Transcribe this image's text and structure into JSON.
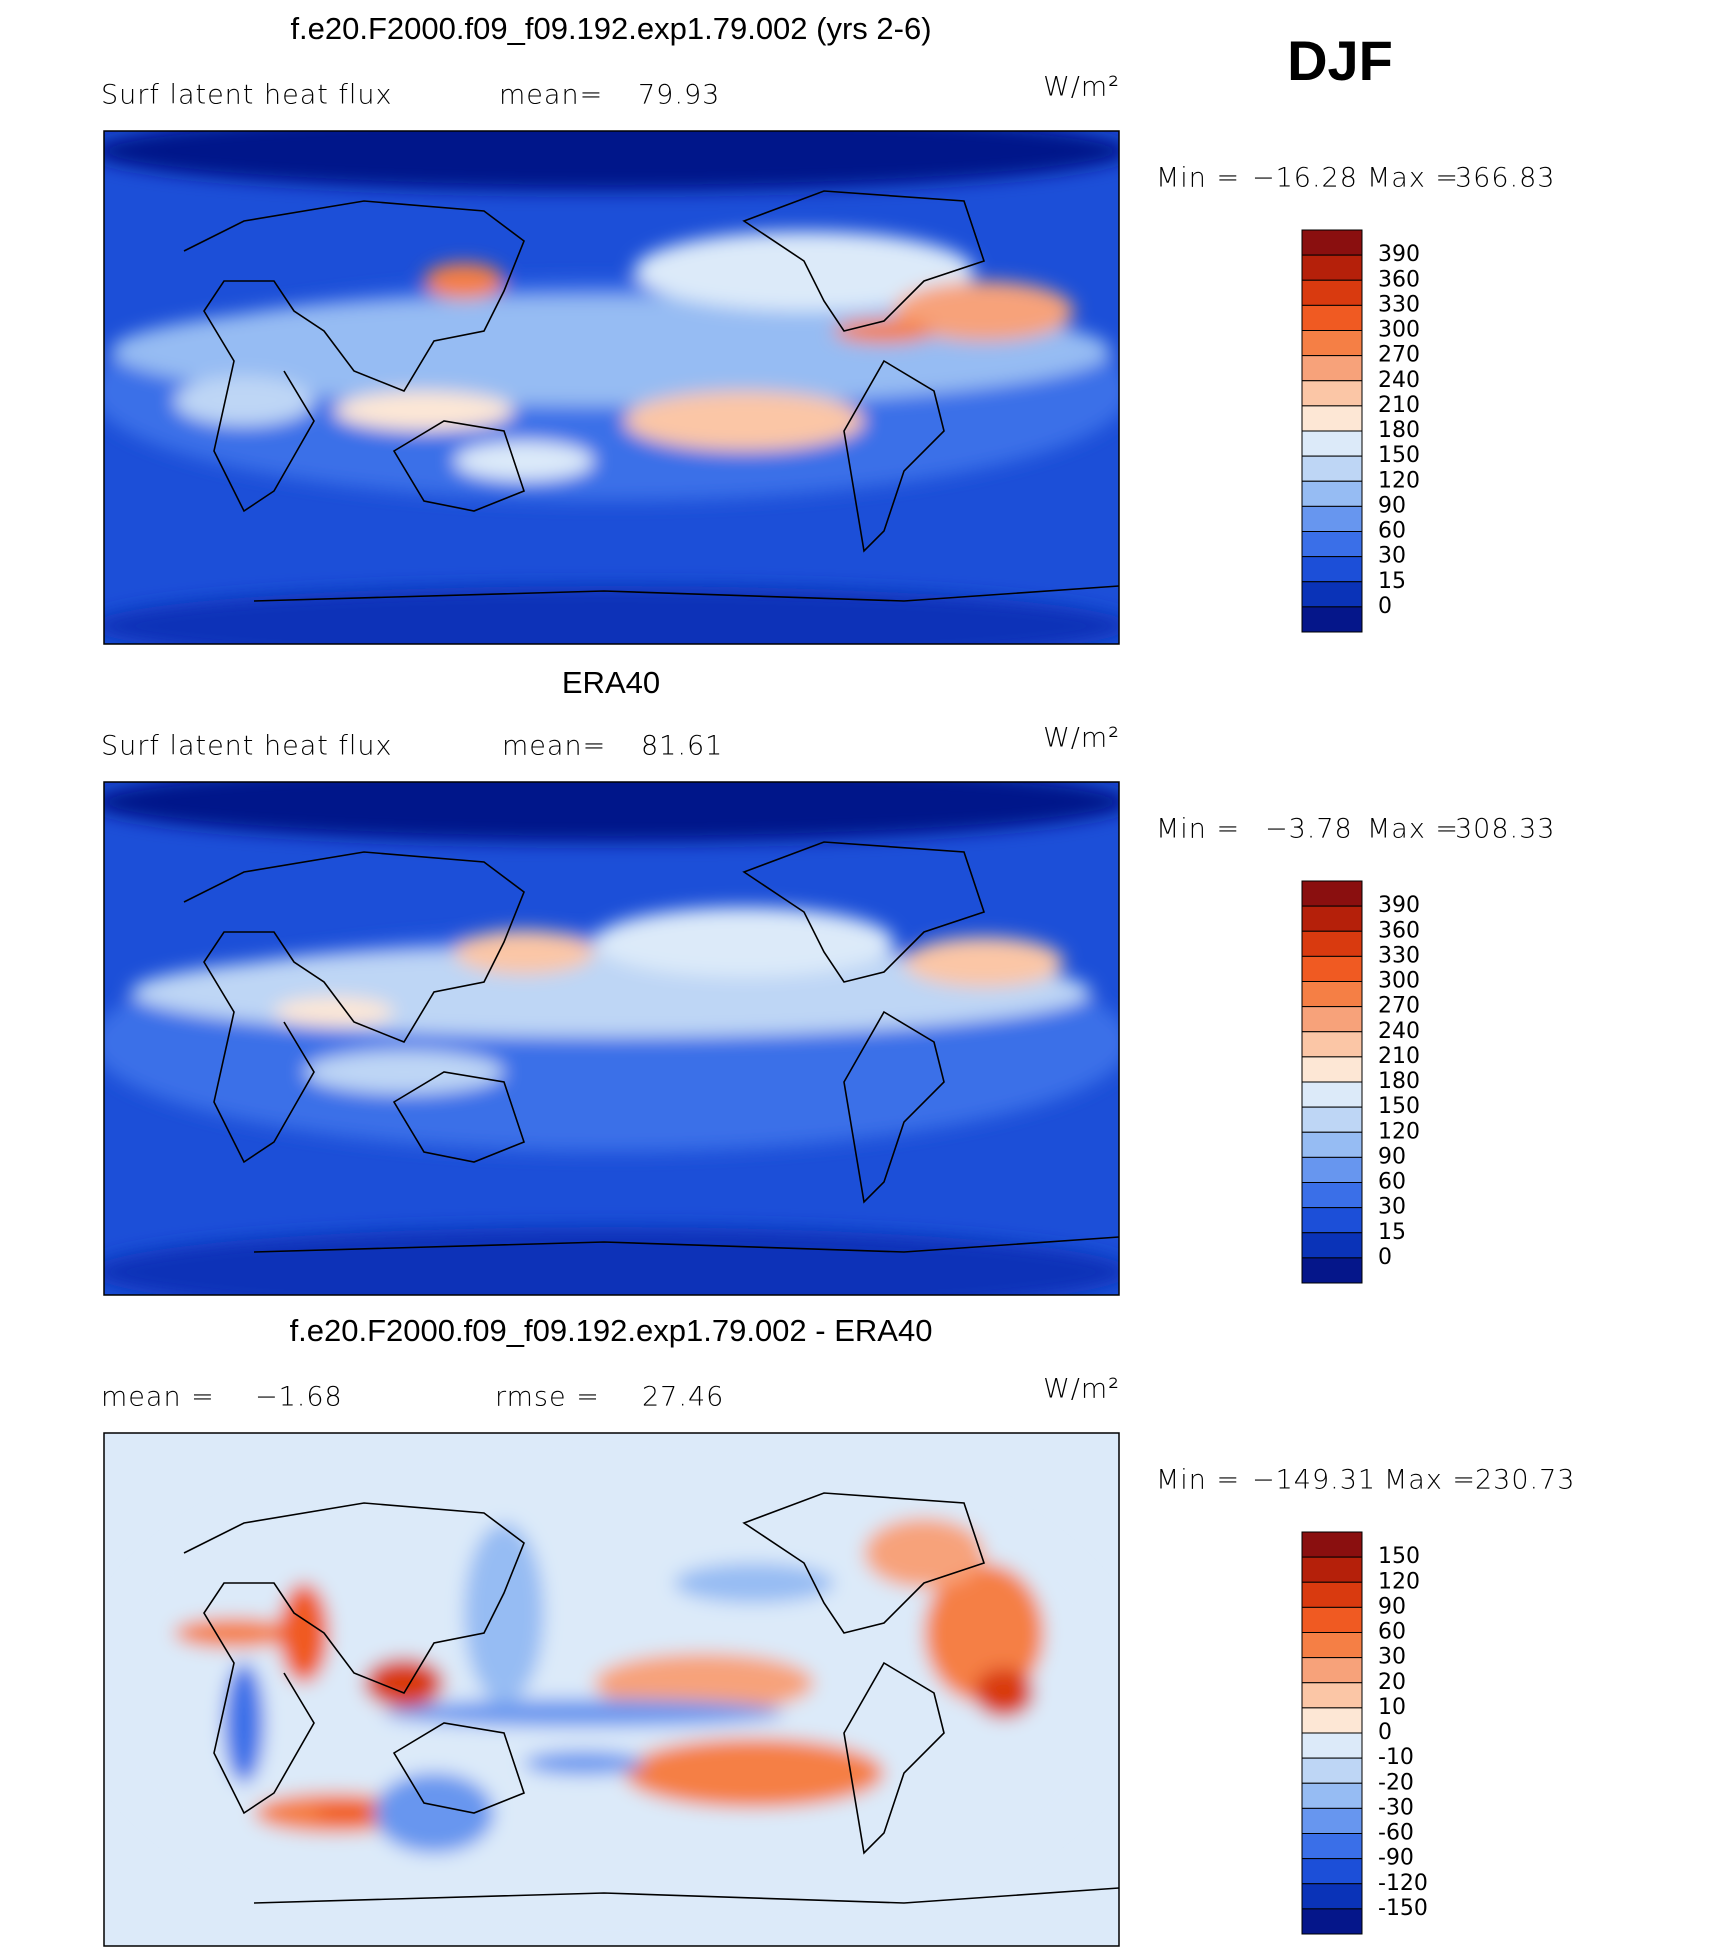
{
  "season": "DJF",
  "panels": [
    {
      "title": "f.e20.F2000.f09_f09.192.exp1.79.002 (yrs 2-6)",
      "stats": [
        "Surf latent heat flux",
        "mean=",
        "79.93"
      ],
      "units": "W/m²",
      "range": [
        "Min =",
        "−16.28",
        "Max =",
        "366.83"
      ],
      "colorbar": {
        "levels": [
          390,
          360,
          330,
          300,
          270,
          240,
          210,
          180,
          150,
          120,
          90,
          60,
          30,
          15,
          0
        ],
        "colors": [
          "#8a0f0f",
          "#b5200a",
          "#d93a0f",
          "#f05a22",
          "#f57f45",
          "#f7a27a",
          "#fbc6a6",
          "#fde7d5",
          "#dceaf9",
          "#bed6f5",
          "#96bcf3",
          "#6796ef",
          "#3a6fe8",
          "#1c4fd8",
          "#0a33b8",
          "#05168a"
        ]
      }
    },
    {
      "title": "ERA40",
      "stats": [
        "Surf latent heat flux",
        "mean=",
        "81.61"
      ],
      "units": "W/m²",
      "range": [
        "Min =",
        "−3.78",
        "Max =",
        "308.33"
      ],
      "colorbar": {
        "levels": [
          390,
          360,
          330,
          300,
          270,
          240,
          210,
          180,
          150,
          120,
          90,
          60,
          30,
          15,
          0
        ],
        "colors": [
          "#8a0f0f",
          "#b5200a",
          "#d93a0f",
          "#f05a22",
          "#f57f45",
          "#f7a27a",
          "#fbc6a6",
          "#fde7d5",
          "#dceaf9",
          "#bed6f5",
          "#96bcf3",
          "#6796ef",
          "#3a6fe8",
          "#1c4fd8",
          "#0a33b8",
          "#05168a"
        ]
      }
    },
    {
      "title": "f.e20.F2000.f09_f09.192.exp1.79.002 - ERA40",
      "stats": [
        "mean =",
        "−1.68",
        "rmse =",
        "27.46"
      ],
      "units": "W/m²",
      "range": [
        "Min =",
        "−149.31",
        "Max =",
        "230.73"
      ],
      "colorbar": {
        "levels": [
          150,
          120,
          90,
          60,
          30,
          20,
          10,
          0,
          -10,
          -20,
          -30,
          -60,
          -90,
          -120,
          -150
        ],
        "colors": [
          "#8a0f0f",
          "#b5200a",
          "#d93a0f",
          "#f05a22",
          "#f57f45",
          "#f7a27a",
          "#fbc6a6",
          "#fde7d5",
          "#dceaf9",
          "#bed6f5",
          "#96bcf3",
          "#6796ef",
          "#3a6fe8",
          "#1c4fd8",
          "#0a33b8",
          "#05168a"
        ]
      }
    }
  ]
}
